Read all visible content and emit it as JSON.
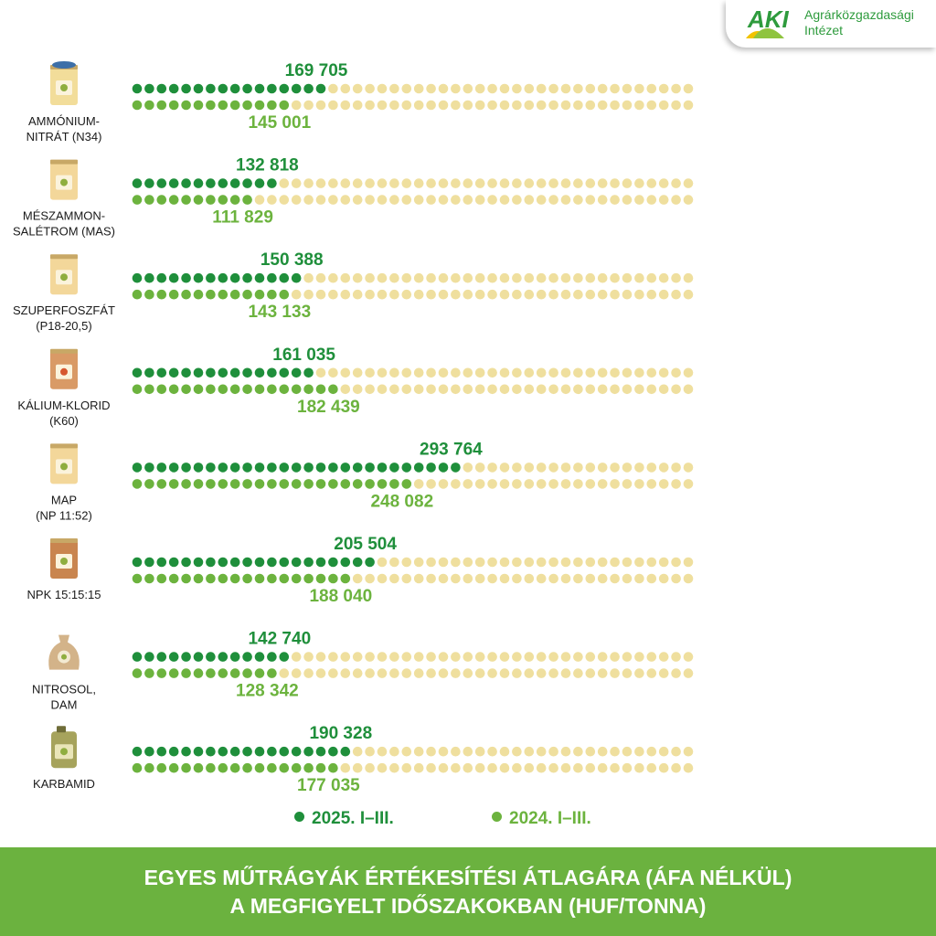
{
  "logo": {
    "mark": "AKI",
    "name_line1": "Agrárközgazdasági",
    "name_line2": "Intézet"
  },
  "colors": {
    "series_2025": "#1f8f3b",
    "series_2024": "#6cb33e",
    "empty_dot": "#efdf9e",
    "footer_bg": "#6bb23f"
  },
  "chart_data": {
    "type": "bar",
    "style": "dot-matrix",
    "title": "EGYES MŰTRÁGYÁK ÉRTÉKESÍTÉSI ÁTLAGÁRA (ÁFA NÉLKÜL) A MEGFIGYELT IDŐSZAKOKBAN (HUF/TONNA)",
    "unit": "HUF/tonna",
    "dots_per_row": 46,
    "dot_value_approx": 11000,
    "categories": [
      {
        "label_lines": [
          "AMMÓNIUM-",
          "NITRÁT (N34)"
        ],
        "icon": "fertilizer-sack-icon"
      },
      {
        "label_lines": [
          "MÉSZAMMON-",
          "SALÉTROM (MAS)"
        ],
        "icon": "fertilizer-bag-icon"
      },
      {
        "label_lines": [
          "SZUPERFOSZFÁT",
          "(P18-20,5)"
        ],
        "icon": "fertilizer-bag-icon"
      },
      {
        "label_lines": [
          "KÁLIUM-KLORID",
          "(K60)"
        ],
        "icon": "fertilizer-box-icon"
      },
      {
        "label_lines": [
          "MAP",
          "(NP 11:52)"
        ],
        "icon": "fertilizer-bag-icon"
      },
      {
        "label_lines": [
          "NPK 15:15:15"
        ],
        "icon": "fertilizer-paper-bag-icon"
      },
      {
        "label_lines": [
          "NITROSOL,",
          "DAM"
        ],
        "icon": "fertilizer-pouch-icon"
      },
      {
        "label_lines": [
          "KARBAMID"
        ],
        "icon": "fertilizer-canister-icon"
      }
    ],
    "series": [
      {
        "name": "2025. I–III.",
        "values": [
          169705,
          132818,
          150388,
          161035,
          293764,
          205504,
          142740,
          190328
        ],
        "labels": [
          "169 705",
          "132 818",
          "150 388",
          "161 035",
          "293 764",
          "205 504",
          "142 740",
          "190 328"
        ],
        "filled_dots": [
          16,
          12,
          14,
          15,
          27,
          20,
          13,
          18
        ]
      },
      {
        "name": "2024. I–III.",
        "values": [
          145001,
          111829,
          143133,
          182439,
          248082,
          188040,
          128342,
          177035
        ],
        "labels": [
          "145 001",
          "111 829",
          "143 133",
          "182 439",
          "248 082",
          "188 040",
          "128 342",
          "177 035"
        ],
        "filled_dots": [
          13,
          10,
          13,
          17,
          23,
          18,
          12,
          17
        ]
      }
    ]
  },
  "legend": {
    "item_2025": "2025. I–III.",
    "item_2024": "2024. I–III."
  },
  "footer": {
    "line1": "EGYES MŰTRÁGYÁK ÉRTÉKESÍTÉSI ÁTLAGÁRA (ÁFA NÉLKÜL)",
    "line2": "A MEGFIGYELT IDŐSZAKOKBAN (HUF/TONNA)"
  }
}
